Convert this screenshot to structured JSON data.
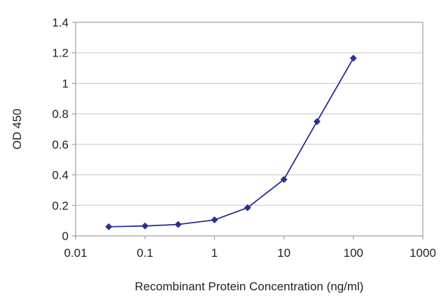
{
  "chart_data": {
    "type": "line",
    "title": "",
    "xlabel": "Recombinant Protein Concentration (ng/ml)",
    "ylabel": "OD 450",
    "x_scale": "log",
    "xlim": [
      0.01,
      1000
    ],
    "ylim": [
      0,
      1.4
    ],
    "x_ticks": [
      "0.01",
      "0.1",
      "1",
      "10",
      "100",
      "1000"
    ],
    "y_ticks": [
      "0",
      "0.2",
      "0.4",
      "0.6",
      "0.8",
      "1",
      "1.2",
      "1.4"
    ],
    "grid": "horizontal",
    "legend": "none",
    "series": [
      {
        "x": [
          0.03,
          0.1,
          0.3,
          1,
          3,
          10,
          30,
          100
        ],
        "y": [
          0.06,
          0.065,
          0.075,
          0.105,
          0.185,
          0.37,
          0.75,
          1.165
        ],
        "color": "#2b2f8f",
        "marker": "diamond"
      }
    ],
    "colors": {
      "line": "#2b2f8f",
      "grid": "#d0d0d0",
      "axis": "#888888",
      "plot_bg": "#ffffff"
    }
  }
}
